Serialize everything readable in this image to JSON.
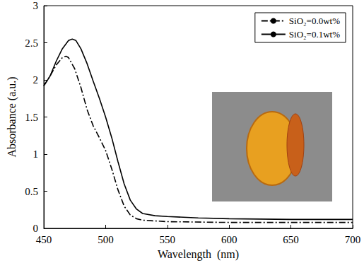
{
  "chart_data": {
    "type": "line",
    "x_label": "Wavelength  (nm)",
    "y_label": "Absorbance (a.u.)",
    "xlim": [
      450,
      700
    ],
    "xticks": [
      450,
      500,
      550,
      600,
      650,
      700
    ],
    "ylim": [
      0,
      3
    ],
    "yticks": [
      0,
      0.5,
      1,
      1.5,
      2,
      2.5,
      3
    ],
    "grid": false,
    "legend": "upper right",
    "series": [
      {
        "name": "SiO₂=0.0wt%",
        "color": "#000000",
        "line_style": "dashdot",
        "x": [
          450,
          455,
          460,
          465,
          468,
          470,
          475,
          480,
          485,
          490,
          495,
          500,
          505,
          510,
          515,
          520,
          525,
          530,
          540,
          550,
          600,
          650,
          700
        ],
        "values": [
          1.92,
          2.05,
          2.2,
          2.3,
          2.32,
          2.3,
          2.15,
          1.9,
          1.6,
          1.38,
          1.22,
          1.05,
          0.8,
          0.52,
          0.3,
          0.18,
          0.13,
          0.11,
          0.1,
          0.09,
          0.08,
          0.08,
          0.08
        ]
      },
      {
        "name": "SiO₂=0.1wt%",
        "color": "#000000",
        "line_style": "solid",
        "x": [
          450,
          455,
          460,
          465,
          470,
          473,
          476,
          480,
          485,
          490,
          495,
          500,
          505,
          510,
          515,
          520,
          525,
          530,
          540,
          550,
          575,
          600,
          650,
          700
        ],
        "values": [
          1.92,
          2.05,
          2.25,
          2.42,
          2.53,
          2.55,
          2.53,
          2.42,
          2.22,
          1.98,
          1.75,
          1.5,
          1.22,
          0.9,
          0.6,
          0.38,
          0.26,
          0.2,
          0.17,
          0.16,
          0.14,
          0.13,
          0.12,
          0.12
        ]
      }
    ]
  }
}
